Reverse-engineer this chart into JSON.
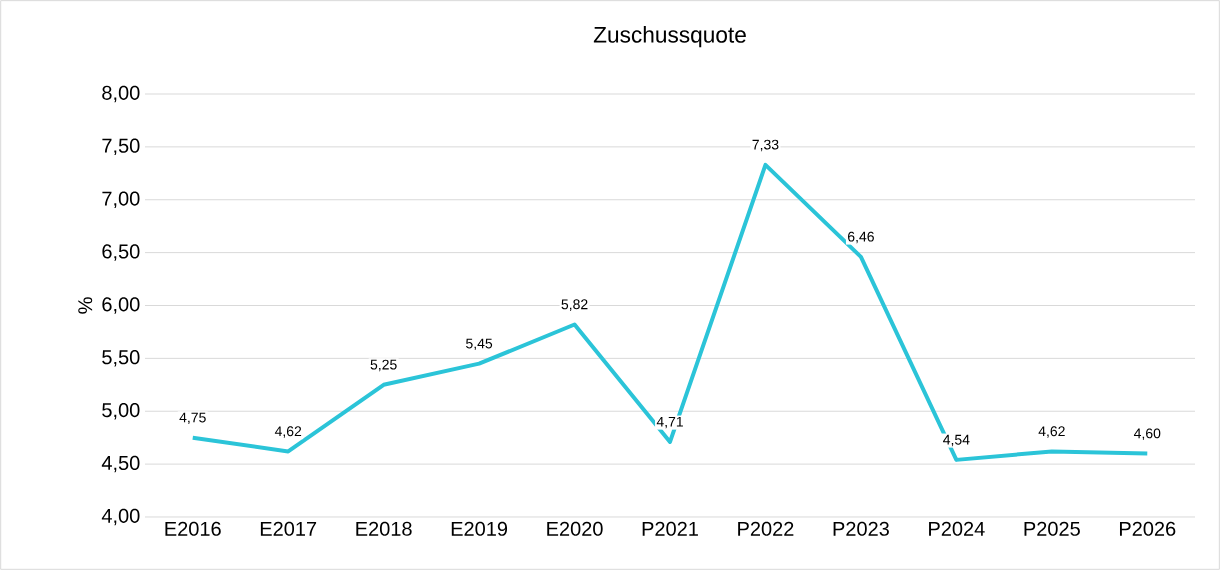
{
  "chart_data": {
    "type": "line",
    "title": "Zuschussquote",
    "ylabel": "%",
    "categories": [
      "E2016",
      "E2017",
      "E2018",
      "E2019",
      "E2020",
      "P2021",
      "P2022",
      "P2023",
      "P2024",
      "P2025",
      "P2026"
    ],
    "series": [
      {
        "color": "#2bc4d8",
        "values": [
          4.75,
          4.62,
          5.25,
          5.45,
          5.82,
          4.71,
          7.33,
          6.46,
          4.54,
          4.62,
          4.6
        ],
        "value_labels": [
          "4,75",
          "4,62",
          "5,25",
          "5,45",
          "5,82",
          "4,71",
          "7,33",
          "6,46",
          "4,54",
          "4,62",
          "4,60"
        ]
      }
    ],
    "ylim": [
      4,
      8
    ],
    "yticks": [
      {
        "value": 4,
        "label": "4,00"
      },
      {
        "value": 4.5,
        "label": "4,50"
      },
      {
        "value": 5,
        "label": "5,00"
      },
      {
        "value": 5.5,
        "label": "5,50"
      },
      {
        "value": 6,
        "label": "6,00"
      },
      {
        "value": 6.5,
        "label": "6,50"
      },
      {
        "value": 7,
        "label": "7,00"
      },
      {
        "value": 7.5,
        "label": "7,50"
      },
      {
        "value": 8,
        "label": "8,00"
      }
    ],
    "grid": "y",
    "marker": "none",
    "line_style": "solid"
  }
}
